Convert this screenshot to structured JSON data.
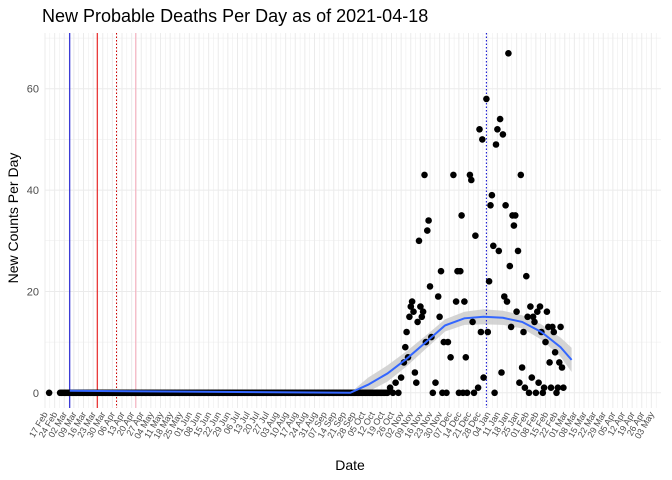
{
  "chart_data": {
    "type": "scatter",
    "title": "New Probable Deaths Per Day as of 2021-04-18",
    "xlabel": "Date",
    "ylabel": "New Counts Per Day",
    "x_range": [
      "2020-02-17",
      "2021-05-10"
    ],
    "ylim": [
      -3,
      71
    ],
    "y_ticks": [
      0,
      20,
      40,
      60
    ],
    "x_tick_labels": [
      "17 Feb",
      "24 Feb",
      "02 Mar",
      "09 Mar",
      "16 Mar",
      "23 Mar",
      "30 Mar",
      "06 Apr",
      "13 Apr",
      "20 Apr",
      "27 Apr",
      "04 May",
      "11 May",
      "18 May",
      "25 May",
      "01 Jun",
      "08 Jun",
      "15 Jun",
      "22 Jun",
      "29 Jun",
      "06 Jul",
      "13 Jul",
      "20 Jul",
      "27 Jul",
      "03 Aug",
      "10 Aug",
      "17 Aug",
      "24 Aug",
      "31 Aug",
      "07 Sep",
      "14 Sep",
      "21 Sep",
      "28 Sep",
      "05 Oct",
      "12 Oct",
      "19 Oct",
      "26 Oct",
      "02 Nov",
      "09 Nov",
      "16 Nov",
      "23 Nov",
      "30 Nov",
      "07 Dec",
      "14 Dec",
      "21 Dec",
      "28 Dec",
      "04 Jan",
      "11 Jan",
      "18 Jan",
      "25 Jan",
      "01 Feb",
      "08 Feb",
      "15 Feb",
      "22 Feb",
      "01 Mar",
      "08 Mar",
      "15 Mar",
      "22 Mar",
      "29 Mar",
      "05 Apr",
      "12 Apr",
      "19 Apr",
      "26 Apr",
      "03 May"
    ],
    "grid": true,
    "legend": "none",
    "zero_count_range": [
      "2020-02-20",
      "2020-10-22"
    ],
    "points": [
      {
        "x": "2020-10-23",
        "y": 0
      },
      {
        "x": "2020-10-25",
        "y": 1
      },
      {
        "x": "2020-10-27",
        "y": 0
      },
      {
        "x": "2020-10-29",
        "y": 2
      },
      {
        "x": "2020-10-31",
        "y": 0
      },
      {
        "x": "2020-11-02",
        "y": 3
      },
      {
        "x": "2020-11-04",
        "y": 6
      },
      {
        "x": "2020-11-05",
        "y": 9
      },
      {
        "x": "2020-11-06",
        "y": 12
      },
      {
        "x": "2020-11-07",
        "y": 7
      },
      {
        "x": "2020-11-08",
        "y": 15
      },
      {
        "x": "2020-11-09",
        "y": 17
      },
      {
        "x": "2020-11-10",
        "y": 18
      },
      {
        "x": "2020-11-11",
        "y": 16
      },
      {
        "x": "2020-11-12",
        "y": 4
      },
      {
        "x": "2020-11-13",
        "y": 2
      },
      {
        "x": "2020-11-14",
        "y": 14
      },
      {
        "x": "2020-11-15",
        "y": 30
      },
      {
        "x": "2020-11-16",
        "y": 17
      },
      {
        "x": "2020-11-17",
        "y": 15
      },
      {
        "x": "2020-11-18",
        "y": 16
      },
      {
        "x": "2020-11-19",
        "y": 43
      },
      {
        "x": "2020-11-20",
        "y": 10
      },
      {
        "x": "2020-11-21",
        "y": 32
      },
      {
        "x": "2020-11-22",
        "y": 34
      },
      {
        "x": "2020-11-23",
        "y": 21
      },
      {
        "x": "2020-11-24",
        "y": 11
      },
      {
        "x": "2020-11-25",
        "y": 0
      },
      {
        "x": "2020-11-27",
        "y": 2
      },
      {
        "x": "2020-11-29",
        "y": 19
      },
      {
        "x": "2020-11-30",
        "y": 15
      },
      {
        "x": "2020-12-01",
        "y": 24
      },
      {
        "x": "2020-12-02",
        "y": 0
      },
      {
        "x": "2020-12-03",
        "y": 10
      },
      {
        "x": "2020-12-05",
        "y": 0
      },
      {
        "x": "2020-12-06",
        "y": 10
      },
      {
        "x": "2020-12-08",
        "y": 7
      },
      {
        "x": "2020-12-10",
        "y": 43
      },
      {
        "x": "2020-12-12",
        "y": 18
      },
      {
        "x": "2020-12-13",
        "y": 24
      },
      {
        "x": "2020-12-14",
        "y": 0
      },
      {
        "x": "2020-12-15",
        "y": 24
      },
      {
        "x": "2020-12-16",
        "y": 35
      },
      {
        "x": "2020-12-17",
        "y": 0
      },
      {
        "x": "2020-12-18",
        "y": 18
      },
      {
        "x": "2020-12-19",
        "y": 7
      },
      {
        "x": "2020-12-20",
        "y": 0
      },
      {
        "x": "2020-12-22",
        "y": 43
      },
      {
        "x": "2020-12-23",
        "y": 42
      },
      {
        "x": "2020-12-24",
        "y": 14
      },
      {
        "x": "2020-12-25",
        "y": 0
      },
      {
        "x": "2020-12-26",
        "y": 31
      },
      {
        "x": "2020-12-28",
        "y": 1
      },
      {
        "x": "2020-12-29",
        "y": 52
      },
      {
        "x": "2020-12-30",
        "y": 12
      },
      {
        "x": "2020-12-31",
        "y": 50
      },
      {
        "x": "2021-01-01",
        "y": 3
      },
      {
        "x": "2021-01-03",
        "y": 58
      },
      {
        "x": "2021-01-04",
        "y": 12
      },
      {
        "x": "2021-01-05",
        "y": 22
      },
      {
        "x": "2021-01-06",
        "y": 37
      },
      {
        "x": "2021-01-07",
        "y": 39
      },
      {
        "x": "2021-01-08",
        "y": 29
      },
      {
        "x": "2021-01-09",
        "y": 0
      },
      {
        "x": "2021-01-10",
        "y": 49
      },
      {
        "x": "2021-01-11",
        "y": 52
      },
      {
        "x": "2021-01-12",
        "y": 28
      },
      {
        "x": "2021-01-13",
        "y": 54
      },
      {
        "x": "2021-01-14",
        "y": 4
      },
      {
        "x": "2021-01-15",
        "y": 51
      },
      {
        "x": "2021-01-16",
        "y": 19
      },
      {
        "x": "2021-01-17",
        "y": 37
      },
      {
        "x": "2021-01-18",
        "y": 18
      },
      {
        "x": "2021-01-19",
        "y": 67
      },
      {
        "x": "2021-01-20",
        "y": 25
      },
      {
        "x": "2021-01-21",
        "y": 13
      },
      {
        "x": "2021-01-22",
        "y": 35
      },
      {
        "x": "2021-01-23",
        "y": 33
      },
      {
        "x": "2021-01-24",
        "y": 35
      },
      {
        "x": "2021-01-25",
        "y": 16
      },
      {
        "x": "2021-01-26",
        "y": 28
      },
      {
        "x": "2021-01-27",
        "y": 2
      },
      {
        "x": "2021-01-28",
        "y": 43
      },
      {
        "x": "2021-01-29",
        "y": 5
      },
      {
        "x": "2021-01-30",
        "y": 12
      },
      {
        "x": "2021-01-31",
        "y": 1
      },
      {
        "x": "2021-02-01",
        "y": 23
      },
      {
        "x": "2021-02-02",
        "y": 15
      },
      {
        "x": "2021-02-03",
        "y": 0
      },
      {
        "x": "2021-02-04",
        "y": 17
      },
      {
        "x": "2021-02-05",
        "y": 3
      },
      {
        "x": "2021-02-06",
        "y": 15
      },
      {
        "x": "2021-02-07",
        "y": 14
      },
      {
        "x": "2021-02-08",
        "y": 0
      },
      {
        "x": "2021-02-09",
        "y": 16
      },
      {
        "x": "2021-02-10",
        "y": 2
      },
      {
        "x": "2021-02-11",
        "y": 17
      },
      {
        "x": "2021-02-12",
        "y": 12
      },
      {
        "x": "2021-02-13",
        "y": 0
      },
      {
        "x": "2021-02-14",
        "y": 1
      },
      {
        "x": "2021-02-15",
        "y": 10
      },
      {
        "x": "2021-02-16",
        "y": 16
      },
      {
        "x": "2021-02-17",
        "y": 13
      },
      {
        "x": "2021-02-18",
        "y": 6
      },
      {
        "x": "2021-02-19",
        "y": 1
      },
      {
        "x": "2021-02-20",
        "y": 13
      },
      {
        "x": "2021-02-21",
        "y": 12
      },
      {
        "x": "2021-02-22",
        "y": 8
      },
      {
        "x": "2021-02-23",
        "y": 0
      },
      {
        "x": "2021-02-24",
        "y": 1
      },
      {
        "x": "2021-02-25",
        "y": 6
      },
      {
        "x": "2021-02-26",
        "y": 13
      },
      {
        "x": "2021-02-27",
        "y": 5
      },
      {
        "x": "2021-02-28",
        "y": 1
      }
    ],
    "smooth": {
      "x": [
        "2020-09-26",
        "2020-10-09",
        "2020-10-23",
        "2020-11-06",
        "2020-11-20",
        "2020-12-04",
        "2020-12-18",
        "2021-01-01",
        "2021-01-15",
        "2021-01-29",
        "2021-02-12",
        "2021-02-26",
        "2021-03-06"
      ],
      "y": [
        0,
        1.6,
        3.8,
        6.7,
        10,
        13.3,
        14.7,
        15,
        14.8,
        14,
        12,
        9,
        6.5
      ],
      "band": [
        0,
        1.4,
        1.6,
        1.5,
        1.3,
        1.2,
        1.3,
        1.5,
        1.4,
        1.3,
        1.5,
        1.9,
        2.4
      ]
    },
    "vlines": [
      {
        "x": "2020-03-06",
        "color": "#0000cc",
        "style": "solid"
      },
      {
        "x": "2020-03-26",
        "color": "#e60000",
        "style": "solid"
      },
      {
        "x": "2020-04-09",
        "color": "#cc0000",
        "style": "dotted"
      },
      {
        "x": "2020-04-23",
        "color": "#f4a8b8",
        "style": "solid"
      },
      {
        "x": "2021-01-03",
        "color": "#0000cc",
        "style": "dotted"
      }
    ],
    "colors": {
      "points": "#000000",
      "smooth": "#3366ff",
      "band": "#cccccc",
      "grid": "#ebebeb"
    }
  }
}
